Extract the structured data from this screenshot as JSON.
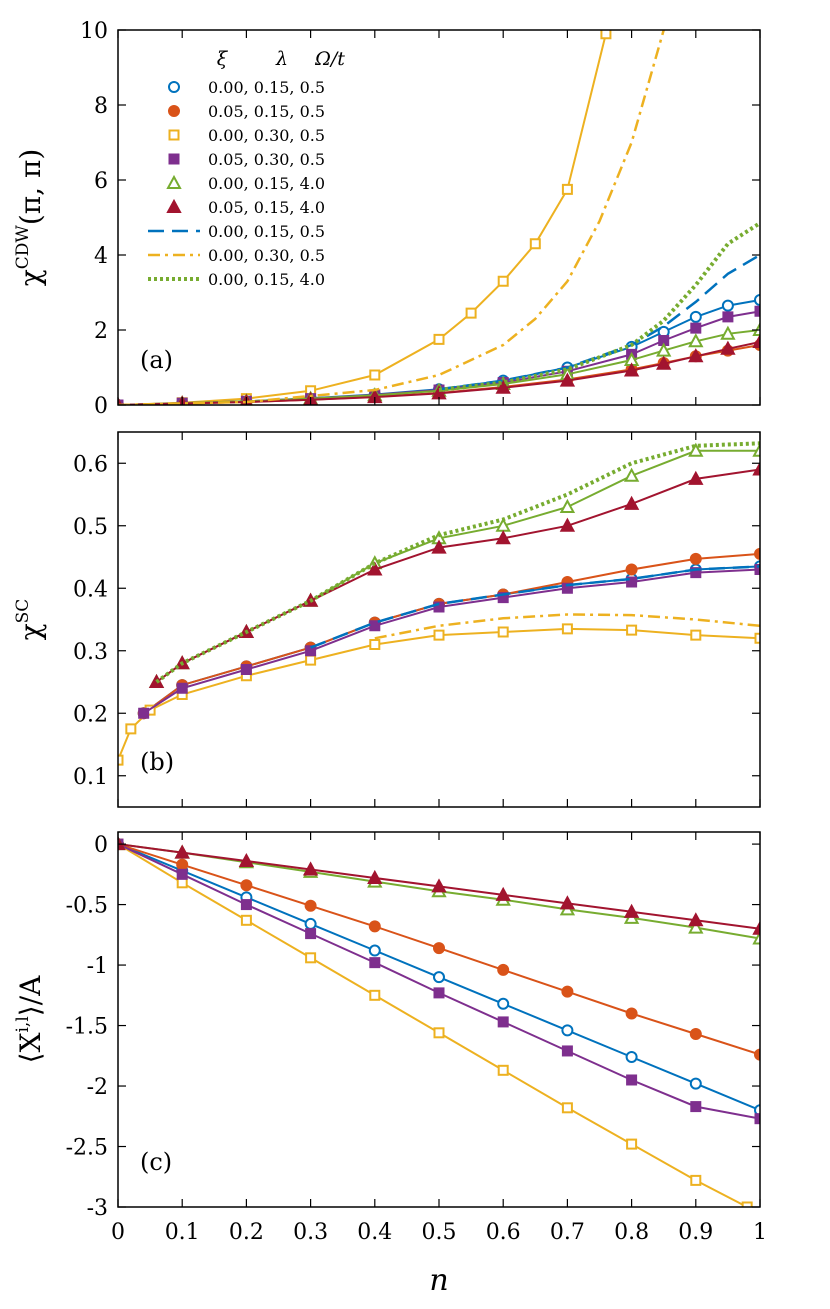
{
  "chart_data": {
    "type": "line",
    "xlabel": "n",
    "xlim": [
      0,
      1
    ],
    "xticks": [
      "0",
      "0.1",
      "0.2",
      "0.3",
      "0.4",
      "0.5",
      "0.6",
      "0.7",
      "0.8",
      "0.9",
      "1"
    ],
    "colors": {
      "blue": "#0072BD",
      "orange": "#D95319",
      "yellow": "#EDB120",
      "purple": "#7E2F8E",
      "green": "#77AC30",
      "red": "#A2142F"
    },
    "legend": {
      "placement": "top-left",
      "headers": [
        "ξ",
        "λ",
        "Ω/t"
      ],
      "entries": [
        {
          "marker": "circle-open",
          "color": "blue",
          "text": "0.00,  0.15,  0.5"
        },
        {
          "marker": "circle-filled",
          "color": "orange",
          "text": "0.05,  0.15,  0.5"
        },
        {
          "marker": "square-open",
          "color": "yellow",
          "text": "0.00,  0.30,  0.5"
        },
        {
          "marker": "square-filled",
          "color": "purple",
          "text": "0.05,  0.30,  0.5"
        },
        {
          "marker": "triangle-open",
          "color": "green",
          "text": "0.00,  0.15,  4.0"
        },
        {
          "marker": "triangle-filled",
          "color": "red",
          "text": "0.05,  0.15,  4.0"
        },
        {
          "marker": "dashed",
          "color": "blue",
          "text": "0.00,  0.15,  0.5"
        },
        {
          "marker": "dashdot",
          "color": "yellow",
          "text": "0.00,  0.30,  0.5"
        },
        {
          "marker": "dotted",
          "color": "green",
          "text": "0.00,  0.15,  4.0"
        }
      ]
    },
    "panels": [
      {
        "label": "(a)",
        "ylabel_main": "χ",
        "ylabel_sup": "CDW",
        "ylabel_tail": "(π, π)",
        "ylim": [
          0,
          10
        ],
        "yticks": [
          "0",
          "2",
          "4",
          "6",
          "8",
          "10"
        ],
        "series": [
          {
            "name": "ξ=0.00 λ=0.15 Ω/t=0.5",
            "color": "blue",
            "marker": "circle-open",
            "x": [
              0,
              0.1,
              0.2,
              0.3,
              0.4,
              0.5,
              0.6,
              0.7,
              0.8,
              0.85,
              0.9,
              0.95,
              1.0
            ],
            "y": [
              0,
              0.05,
              0.1,
              0.18,
              0.28,
              0.42,
              0.65,
              1.0,
              1.55,
              1.95,
              2.35,
              2.65,
              2.8
            ]
          },
          {
            "name": "ξ=0.05 λ=0.15 Ω/t=0.5",
            "color": "orange",
            "marker": "circle-filled",
            "x": [
              0,
              0.1,
              0.2,
              0.3,
              0.4,
              0.5,
              0.6,
              0.7,
              0.8,
              0.85,
              0.9,
              0.95,
              1.0
            ],
            "y": [
              0,
              0.04,
              0.08,
              0.14,
              0.22,
              0.32,
              0.48,
              0.68,
              0.95,
              1.12,
              1.3,
              1.45,
              1.6
            ]
          },
          {
            "name": "ξ=0.00 λ=0.30 Ω/t=0.5",
            "color": "yellow",
            "marker": "square-open",
            "x": [
              0,
              0.1,
              0.2,
              0.3,
              0.4,
              0.5,
              0.55,
              0.6,
              0.65,
              0.7,
              0.76
            ],
            "y": [
              0,
              0.06,
              0.17,
              0.38,
              0.8,
              1.75,
              2.45,
              3.3,
              4.3,
              5.75,
              9.9
            ]
          },
          {
            "name": "ξ=0.05 λ=0.30 Ω/t=0.5",
            "color": "purple",
            "marker": "square-filled",
            "x": [
              0,
              0.1,
              0.2,
              0.3,
              0.4,
              0.5,
              0.6,
              0.7,
              0.8,
              0.85,
              0.9,
              0.95,
              1.0
            ],
            "y": [
              0,
              0.05,
              0.1,
              0.17,
              0.27,
              0.4,
              0.6,
              0.9,
              1.35,
              1.72,
              2.05,
              2.35,
              2.5
            ]
          },
          {
            "name": "ξ=0.00 λ=0.15 Ω/t=4.0",
            "color": "green",
            "marker": "triangle-open",
            "x": [
              0,
              0.1,
              0.2,
              0.3,
              0.4,
              0.5,
              0.6,
              0.7,
              0.8,
              0.85,
              0.9,
              0.95,
              1.0
            ],
            "y": [
              0,
              0.05,
              0.1,
              0.17,
              0.26,
              0.38,
              0.56,
              0.82,
              1.2,
              1.45,
              1.7,
              1.9,
              2.0
            ]
          },
          {
            "name": "ξ=0.05 λ=0.15 Ω/t=4.0",
            "color": "red",
            "marker": "triangle-filled",
            "x": [
              0,
              0.1,
              0.2,
              0.3,
              0.4,
              0.5,
              0.6,
              0.7,
              0.8,
              0.85,
              0.9,
              0.95,
              1.0
            ],
            "y": [
              0,
              0.04,
              0.08,
              0.14,
              0.21,
              0.31,
              0.46,
              0.65,
              0.92,
              1.1,
              1.3,
              1.5,
              1.68
            ]
          },
          {
            "name": "dashed ξ=0.00 λ=0.15 Ω/t=0.5",
            "color": "blue",
            "marker": "dashed",
            "x": [
              0.5,
              0.6,
              0.7,
              0.8,
              0.85,
              0.9,
              0.95,
              1.0
            ],
            "y": [
              0.42,
              0.65,
              1.0,
              1.6,
              2.1,
              2.75,
              3.5,
              4.0
            ]
          },
          {
            "name": "dashdot ξ=0.00 λ=0.30 Ω/t=0.5",
            "color": "yellow",
            "marker": "dashdot",
            "x": [
              0,
              0.2,
              0.4,
              0.5,
              0.6,
              0.65,
              0.7,
              0.75,
              0.8,
              0.85
            ],
            "y": [
              0,
              0.08,
              0.4,
              0.8,
              1.6,
              2.3,
              3.3,
              4.9,
              7.0,
              10.0
            ]
          },
          {
            "name": "dotted ξ=0.00 λ=0.15 Ω/t=4.0",
            "color": "green",
            "marker": "dotted",
            "x": [
              0.5,
              0.6,
              0.7,
              0.8,
              0.85,
              0.9,
              0.95,
              1.0
            ],
            "y": [
              0.4,
              0.6,
              0.95,
              1.6,
              2.25,
              3.2,
              4.3,
              4.85
            ]
          }
        ]
      },
      {
        "label": "(b)",
        "ylabel_main": "χ",
        "ylabel_sup": "SC",
        "ylabel_tail": "",
        "ylim": [
          0.05,
          0.65
        ],
        "yticks": [
          "0.1",
          "0.2",
          "0.3",
          "0.4",
          "0.5",
          "0.6"
        ],
        "series": [
          {
            "name": "ξ=0.00 λ=0.15 Ω/t=0.5",
            "color": "blue",
            "marker": "circle-open",
            "x": [
              0.04,
              0.1,
              0.2,
              0.3,
              0.4,
              0.5,
              0.6,
              0.7,
              0.8,
              0.9,
              1.0
            ],
            "y": [
              0.2,
              0.245,
              0.275,
              0.305,
              0.345,
              0.375,
              0.39,
              0.405,
              0.415,
              0.43,
              0.435
            ]
          },
          {
            "name": "ξ=0.05 λ=0.15 Ω/t=0.5",
            "color": "orange",
            "marker": "circle-filled",
            "x": [
              0.04,
              0.1,
              0.2,
              0.3,
              0.4,
              0.5,
              0.6,
              0.7,
              0.8,
              0.9,
              1.0
            ],
            "y": [
              0.2,
              0.245,
              0.275,
              0.305,
              0.345,
              0.375,
              0.39,
              0.41,
              0.43,
              0.447,
              0.455
            ]
          },
          {
            "name": "ξ=0.00 λ=0.30 Ω/t=0.5",
            "color": "yellow",
            "marker": "square-open",
            "x": [
              0,
              0.02,
              0.05,
              0.1,
              0.2,
              0.3,
              0.4,
              0.5,
              0.6,
              0.7,
              0.8,
              0.9,
              1.0
            ],
            "y": [
              0.125,
              0.175,
              0.205,
              0.23,
              0.26,
              0.285,
              0.31,
              0.325,
              0.33,
              0.335,
              0.333,
              0.325,
              0.32
            ]
          },
          {
            "name": "ξ=0.05 λ=0.30 Ω/t=0.5",
            "color": "purple",
            "marker": "square-filled",
            "x": [
              0.04,
              0.1,
              0.2,
              0.3,
              0.4,
              0.5,
              0.6,
              0.7,
              0.8,
              0.9,
              1.0
            ],
            "y": [
              0.2,
              0.24,
              0.27,
              0.3,
              0.34,
              0.37,
              0.385,
              0.4,
              0.41,
              0.425,
              0.43
            ]
          },
          {
            "name": "ξ=0.00 λ=0.15 Ω/t=4.0",
            "color": "green",
            "marker": "triangle-open",
            "x": [
              0.06,
              0.1,
              0.2,
              0.3,
              0.4,
              0.5,
              0.6,
              0.7,
              0.8,
              0.9,
              1.0
            ],
            "y": [
              0.25,
              0.28,
              0.33,
              0.38,
              0.44,
              0.48,
              0.5,
              0.53,
              0.58,
              0.62,
              0.62
            ]
          },
          {
            "name": "ξ=0.05 λ=0.15 Ω/t=4.0",
            "color": "red",
            "marker": "triangle-filled",
            "x": [
              0.06,
              0.1,
              0.2,
              0.3,
              0.4,
              0.5,
              0.6,
              0.7,
              0.8,
              0.9,
              1.0
            ],
            "y": [
              0.25,
              0.28,
              0.33,
              0.38,
              0.43,
              0.465,
              0.48,
              0.5,
              0.535,
              0.575,
              0.59
            ]
          },
          {
            "name": "dashed ξ=0.00 λ=0.15 Ω/t=0.5",
            "color": "blue",
            "marker": "dashed",
            "x": [
              0.3,
              0.4,
              0.5,
              0.6,
              0.7,
              0.8,
              0.9,
              1.0
            ],
            "y": [
              0.305,
              0.345,
              0.375,
              0.39,
              0.405,
              0.415,
              0.43,
              0.435
            ]
          },
          {
            "name": "dashdot ξ=0.00 λ=0.30 Ω/t=0.5",
            "color": "yellow",
            "marker": "dashdot",
            "x": [
              0.4,
              0.5,
              0.6,
              0.7,
              0.8,
              0.9,
              1.0
            ],
            "y": [
              0.32,
              0.34,
              0.352,
              0.358,
              0.357,
              0.35,
              0.34
            ]
          },
          {
            "name": "dotted ξ=0.00 λ=0.15 Ω/t=4.0",
            "color": "green",
            "marker": "dotted",
            "x": [
              0.06,
              0.1,
              0.2,
              0.3,
              0.4,
              0.5,
              0.6,
              0.7,
              0.8,
              0.9,
              1.0
            ],
            "y": [
              0.25,
              0.28,
              0.33,
              0.38,
              0.44,
              0.485,
              0.51,
              0.55,
              0.6,
              0.628,
              0.632
            ]
          }
        ]
      },
      {
        "label": "(c)",
        "ylabel_main": "⟨X",
        "ylabel_sup": "i,l",
        "ylabel_tail": "⟩/A",
        "ylim": [
          -3,
          0.1
        ],
        "yticks": [
          "-3",
          "-2.5",
          "-2",
          "-1.5",
          "-1",
          "-0.5",
          "0"
        ],
        "series": [
          {
            "name": "ξ=0.00 λ=0.15 Ω/t=0.5",
            "color": "blue",
            "marker": "circle-open",
            "x": [
              0,
              0.1,
              0.2,
              0.3,
              0.4,
              0.5,
              0.6,
              0.7,
              0.8,
              0.9,
              1.0
            ],
            "y": [
              0,
              -0.22,
              -0.44,
              -0.66,
              -0.88,
              -1.1,
              -1.32,
              -1.54,
              -1.76,
              -1.98,
              -2.2
            ]
          },
          {
            "name": "ξ=0.05 λ=0.15 Ω/t=0.5",
            "color": "orange",
            "marker": "circle-filled",
            "x": [
              0,
              0.1,
              0.2,
              0.3,
              0.4,
              0.5,
              0.6,
              0.7,
              0.8,
              0.9,
              1.0
            ],
            "y": [
              0,
              -0.17,
              -0.34,
              -0.51,
              -0.68,
              -0.86,
              -1.04,
              -1.22,
              -1.4,
              -1.57,
              -1.74
            ]
          },
          {
            "name": "ξ=0.00 λ=0.30 Ω/t=0.5",
            "color": "yellow",
            "marker": "square-open",
            "x": [
              0,
              0.1,
              0.2,
              0.3,
              0.4,
              0.5,
              0.6,
              0.7,
              0.8,
              0.9,
              0.98
            ],
            "y": [
              0,
              -0.32,
              -0.63,
              -0.94,
              -1.25,
              -1.56,
              -1.87,
              -2.18,
              -2.48,
              -2.78,
              -3.0
            ]
          },
          {
            "name": "ξ=0.05 λ=0.30 Ω/t=0.5",
            "color": "purple",
            "marker": "square-filled",
            "x": [
              0,
              0.1,
              0.2,
              0.3,
              0.4,
              0.5,
              0.6,
              0.7,
              0.8,
              0.9,
              1.0
            ],
            "y": [
              0,
              -0.25,
              -0.5,
              -0.74,
              -0.98,
              -1.23,
              -1.47,
              -1.71,
              -1.95,
              -2.17,
              -2.27
            ]
          },
          {
            "name": "ξ=0.00 λ=0.15 Ω/t=4.0",
            "color": "green",
            "marker": "triangle-open",
            "x": [
              0,
              0.1,
              0.2,
              0.3,
              0.4,
              0.5,
              0.6,
              0.7,
              0.8,
              0.9,
              1.0
            ],
            "y": [
              0,
              -0.07,
              -0.15,
              -0.23,
              -0.31,
              -0.39,
              -0.46,
              -0.54,
              -0.61,
              -0.69,
              -0.78
            ]
          },
          {
            "name": "ξ=0.05 λ=0.15 Ω/t=4.0",
            "color": "red",
            "marker": "triangle-filled",
            "x": [
              0,
              0.1,
              0.2,
              0.3,
              0.4,
              0.5,
              0.6,
              0.7,
              0.8,
              0.9,
              1.0
            ],
            "y": [
              0,
              -0.07,
              -0.14,
              -0.21,
              -0.28,
              -0.35,
              -0.42,
              -0.49,
              -0.56,
              -0.63,
              -0.7
            ]
          }
        ]
      }
    ]
  }
}
